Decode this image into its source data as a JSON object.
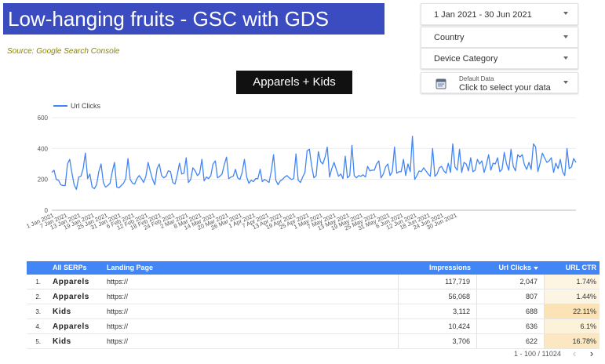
{
  "header": {
    "title": "Low-hanging fruits - GSC with GDS",
    "source": "Source: Google Search Console"
  },
  "controls": {
    "date_range": "1 Jan 2021 - 30 Jun 2021",
    "country": "Country",
    "device_category": "Device Category",
    "data_source_label": "Default Data",
    "data_source_value": "Click to select your data"
  },
  "segment_badge": "Apparels + Kids",
  "colors": {
    "title_banner": "#3b4cc0",
    "line": "#4285f4",
    "table_header": "#4285f4",
    "ctr_heat_low": "#fdf6e6",
    "ctr_heat_high": "#fbe3b6"
  },
  "chart_data": {
    "type": "line",
    "legend": "top-left",
    "grid": true,
    "ylim": [
      0,
      600
    ],
    "yticks": [
      0,
      200,
      400,
      600
    ],
    "xlabel": "",
    "ylabel": "",
    "x_tick_labels": [
      "1 Jan 2021",
      "7 Jan 2021",
      "13 Jan 2021",
      "19 Jan 2021",
      "25 Jan 2021",
      "31 Jan 2021",
      "6 Feb 2021",
      "12 Feb 2021",
      "18 Feb 2021",
      "24 Feb 2021",
      "2 Mar 2021",
      "8 Mar 2021",
      "14 Mar 2021",
      "20 Mar 2021",
      "26 Mar 2021",
      "1 Apr 2021",
      "7 Apr 2021",
      "13 Apr 2021",
      "19 Apr 2021",
      "25 Apr 2021",
      "1 May 2021",
      "7 May 2021",
      "13 May 2021",
      "19 May 2021",
      "25 May 2021",
      "31 May 2021",
      "6 Jun 2021",
      "12 Jun 2021",
      "18 Jun 2021",
      "24 Jun 2021",
      "30 Jun 2021"
    ],
    "series": [
      {
        "name": "Url Clicks",
        "values": [
          245,
          260,
          200,
          195,
          165,
          160,
          160,
          300,
          330,
          240,
          165,
          135,
          215,
          220,
          270,
          370,
          205,
          235,
          150,
          140,
          165,
          250,
          300,
          180,
          150,
          160,
          175,
          250,
          310,
          150,
          145,
          160,
          175,
          205,
          335,
          200,
          175,
          170,
          205,
          225,
          205,
          180,
          220,
          310,
          250,
          200,
          165,
          270,
          300,
          225,
          210,
          220,
          255,
          250,
          180,
          170,
          230,
          305,
          235,
          240,
          340,
          180,
          200,
          275,
          255,
          225,
          240,
          330,
          190,
          215,
          205,
          225,
          300,
          320,
          210,
          220,
          235,
          295,
          345,
          205,
          215,
          220,
          265,
          210,
          200,
          245,
          330,
          215,
          175,
          195,
          185,
          205,
          205,
          265,
          185,
          200,
          190,
          180,
          255,
          360,
          195,
          165,
          190,
          200,
          215,
          225,
          210,
          200,
          205,
          365,
          195,
          180,
          215,
          245,
          385,
          395,
          290,
          210,
          225,
          380,
          315,
          300,
          345,
          410,
          215,
          270,
          310,
          265,
          220,
          235,
          205,
          350,
          210,
          225,
          420,
          225,
          210,
          225,
          220,
          230,
          215,
          285,
          255,
          260,
          260,
          300,
          320,
          210,
          235,
          280,
          300,
          225,
          250,
          410,
          240,
          250,
          250,
          330,
          225,
          300,
          250,
          480,
          200,
          225,
          255,
          250,
          275,
          255,
          235,
          220,
          400,
          220,
          235,
          275,
          285,
          255,
          240,
          305,
          245,
          430,
          280,
          260,
          395,
          245,
          310,
          300,
          255,
          340,
          250,
          260,
          330,
          300,
          320,
          245,
          295,
          360,
          260,
          305,
          300,
          340,
          250,
          265,
          375,
          300,
          260,
          395,
          285,
          255,
          360,
          345,
          360,
          295,
          265,
          310,
          265,
          430,
          410,
          250,
          305,
          370,
          340,
          310,
          320,
          340,
          245,
          305,
          270,
          330,
          250,
          225,
          400,
          270,
          280,
          335,
          310
        ]
      }
    ]
  },
  "table": {
    "columns": [
      "All SERPs",
      "Landing Page",
      "Impressions",
      "Url Clicks",
      "URL CTR"
    ],
    "sorted_column": "Url Clicks",
    "rows": [
      {
        "num": "1.",
        "serp": "Apparels",
        "lp": "https://",
        "imp": "117,719",
        "clk": "2,047",
        "ctr": "1.74%",
        "ctr_level": 0.0787
      },
      {
        "num": "2.",
        "serp": "Apparels",
        "lp": "https://",
        "imp": "56,068",
        "clk": "807",
        "ctr": "1.44%",
        "ctr_level": 0.0651
      },
      {
        "num": "3.",
        "serp": "Kids",
        "lp": "https://",
        "imp": "3,112",
        "clk": "688",
        "ctr": "22.11%",
        "ctr_level": 1.0
      },
      {
        "num": "4.",
        "serp": "Apparels",
        "lp": "https://",
        "imp": "10,424",
        "clk": "636",
        "ctr": "6.1%",
        "ctr_level": 0.2759
      },
      {
        "num": "5.",
        "serp": "Kids",
        "lp": "https://",
        "imp": "3,706",
        "clk": "622",
        "ctr": "16.78%",
        "ctr_level": 0.7589
      }
    ],
    "pagination": "1 - 100 / 11024"
  },
  "icons": {
    "prev": "chevron-left-icon",
    "next": "chevron-right-icon",
    "data_source": "database-icon",
    "dropdown": "caret-down-icon"
  }
}
